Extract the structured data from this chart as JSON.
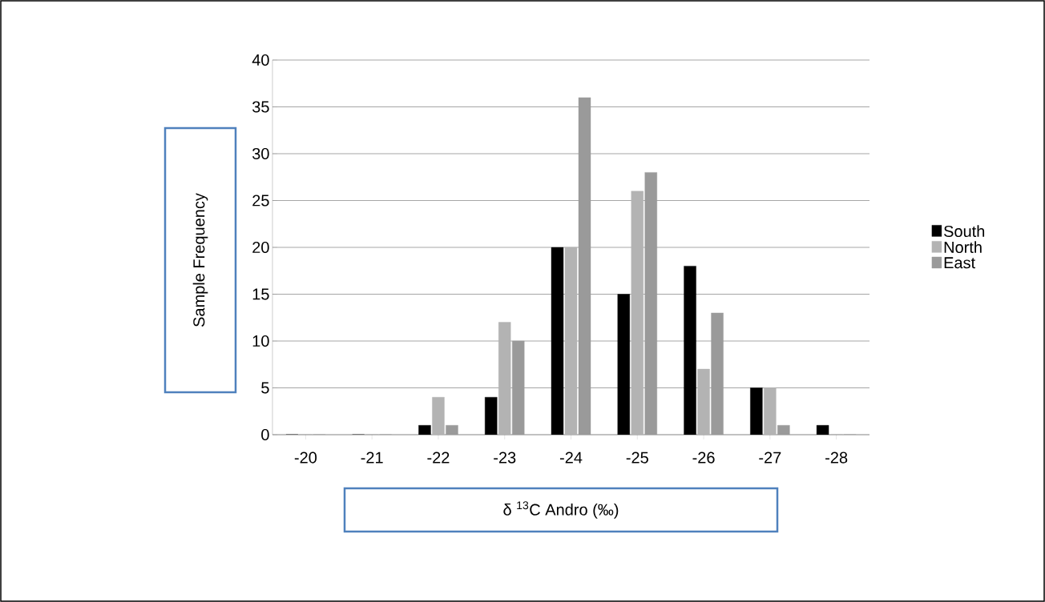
{
  "chart_data": {
    "type": "bar",
    "xlabel": "δ $^{13}$C Andro  (‰)",
    "ylabel": "Sample Frequency",
    "categories": [
      "-20",
      "-21",
      "-22",
      "-23",
      "-24",
      "-25",
      "-26",
      "-27",
      "-28"
    ],
    "series": [
      {
        "name": "South",
        "color": "#000000",
        "values": [
          0,
          0,
          1,
          4,
          20,
          15,
          18,
          5,
          1
        ]
      },
      {
        "name": "North",
        "color": "#b3b3b3",
        "values": [
          0,
          0,
          4,
          12,
          20,
          26,
          7,
          5,
          0
        ]
      },
      {
        "name": "East",
        "color": "#9a9a9a",
        "values": [
          0,
          0,
          1,
          10,
          36,
          28,
          13,
          1,
          0
        ]
      }
    ],
    "ylim": [
      0,
      40
    ],
    "yticks": [
      0,
      5,
      10,
      15,
      20,
      25,
      30,
      35,
      40
    ],
    "grid": "y",
    "legend": "right"
  }
}
